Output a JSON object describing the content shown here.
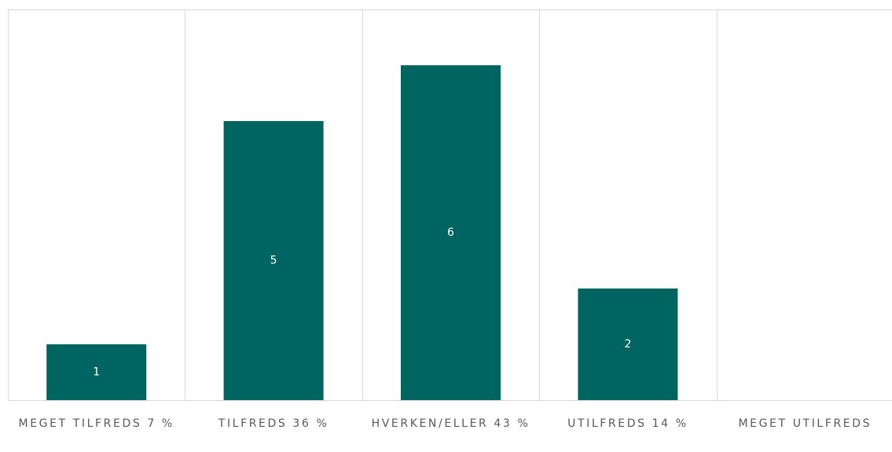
{
  "chart_data": {
    "type": "bar",
    "categories": [
      "MEGET TILFREDS 7 %",
      "TILFREDS 36 %",
      "HVERKEN/ELLER 43 %",
      "UTILFREDS 14 %",
      "MEGET UTILFREDS"
    ],
    "values": [
      1,
      5,
      6,
      2,
      null
    ],
    "color": "#006461",
    "ylim": [
      0,
      7
    ]
  }
}
